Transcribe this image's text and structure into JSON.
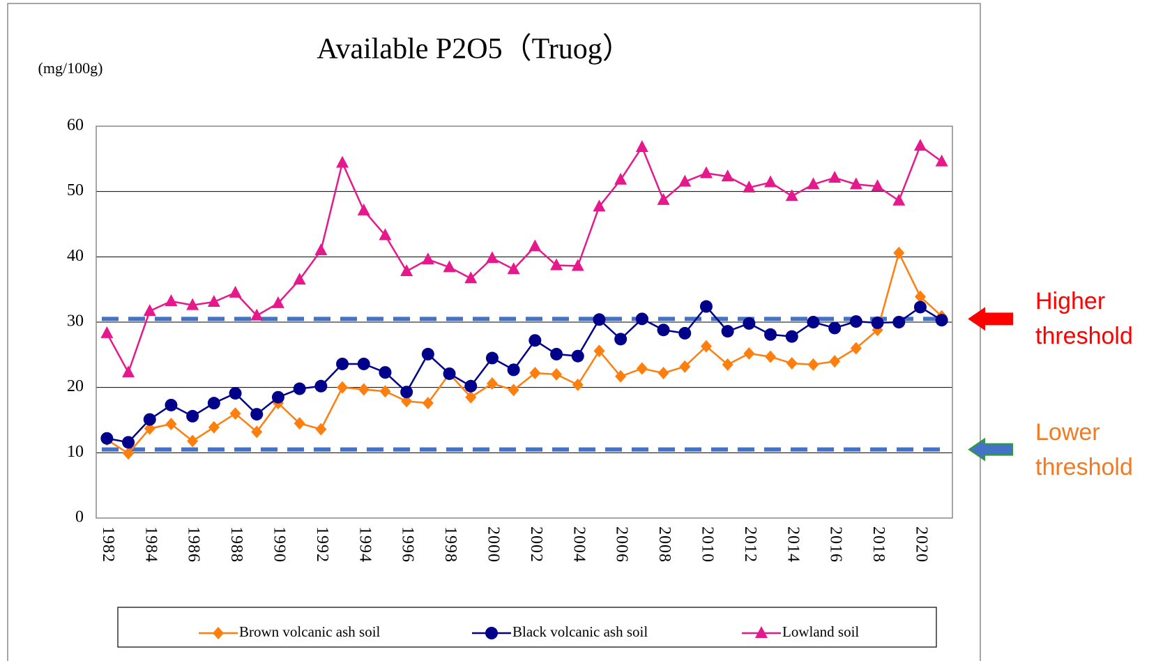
{
  "chart_data": {
    "type": "line",
    "title": "Available P2O5（Truog）",
    "y_label": "(mg/100g)",
    "categories": [
      "1982",
      null,
      "1984",
      null,
      "1986",
      null,
      "1988",
      null,
      "1990",
      null,
      "1992",
      null,
      "1994",
      null,
      "1996",
      null,
      "1998",
      null,
      "2000",
      null,
      "2002",
      null,
      "2004",
      null,
      "2006",
      null,
      "2008",
      null,
      "2010",
      null,
      "2012",
      null,
      "2014",
      null,
      "2016",
      null,
      "2018",
      null,
      "2020",
      null
    ],
    "series": [
      {
        "name": "Brown volcanic ash soil",
        "color": "#ff7f0e",
        "marker": "diamond",
        "values": [
          12.0,
          9.9,
          13.7,
          14.4,
          11.8,
          13.9,
          16.0,
          13.2,
          17.6,
          14.5,
          13.6,
          20.0,
          19.7,
          19.4,
          17.9,
          17.6,
          22.1,
          18.5,
          20.6,
          19.6,
          22.2,
          22.0,
          20.4,
          25.6,
          21.7,
          22.9,
          22.2,
          23.2,
          26.3,
          23.5,
          25.2,
          24.7,
          23.7,
          23.5,
          24.0,
          26.0,
          28.8,
          40.6,
          33.9,
          30.9
        ]
      },
      {
        "name": "Black volcanic ash soil",
        "color": "#00008b",
        "marker": "circle",
        "values": [
          12.2,
          11.6,
          15.1,
          17.3,
          15.6,
          17.6,
          19.1,
          15.9,
          18.5,
          19.8,
          20.2,
          23.6,
          23.6,
          22.3,
          19.3,
          25.1,
          22.1,
          20.2,
          24.5,
          22.7,
          27.2,
          25.1,
          24.8,
          30.4,
          27.4,
          30.5,
          28.8,
          28.3,
          32.4,
          28.6,
          29.8,
          28.1,
          27.8,
          30.0,
          29.1,
          30.1,
          29.9,
          30.0,
          32.3,
          30.3
        ]
      },
      {
        "name": "Lowland soil",
        "color": "#e6198c",
        "marker": "triangle",
        "values": [
          28.3,
          22.3,
          31.7,
          33.2,
          32.6,
          33.1,
          34.5,
          31.0,
          32.9,
          36.5,
          41.0,
          54.4,
          47.1,
          43.3,
          37.8,
          39.6,
          38.4,
          36.7,
          39.8,
          38.1,
          41.6,
          38.7,
          38.6,
          47.7,
          51.8,
          56.8,
          48.7,
          51.5,
          52.8,
          52.3,
          50.6,
          51.4,
          49.3,
          51.1,
          52.1,
          51.1,
          50.8,
          48.6,
          57.0,
          54.6
        ]
      }
    ],
    "ylim": [
      0,
      60
    ],
    "yticks": [
      0,
      10,
      20,
      30,
      40,
      50,
      60
    ],
    "grid": true,
    "reference_lines": [
      {
        "value": 30.5,
        "color": "#4472c4",
        "label": "Higher threshold",
        "label_color": "#ff0000",
        "arrow_color": "#ff0000"
      },
      {
        "value": 10.5,
        "color": "#4472c4",
        "label": "Lower threshold",
        "label_color": "#f07b24",
        "arrow_color": "#4472c4"
      }
    ],
    "legend": "bottom"
  }
}
